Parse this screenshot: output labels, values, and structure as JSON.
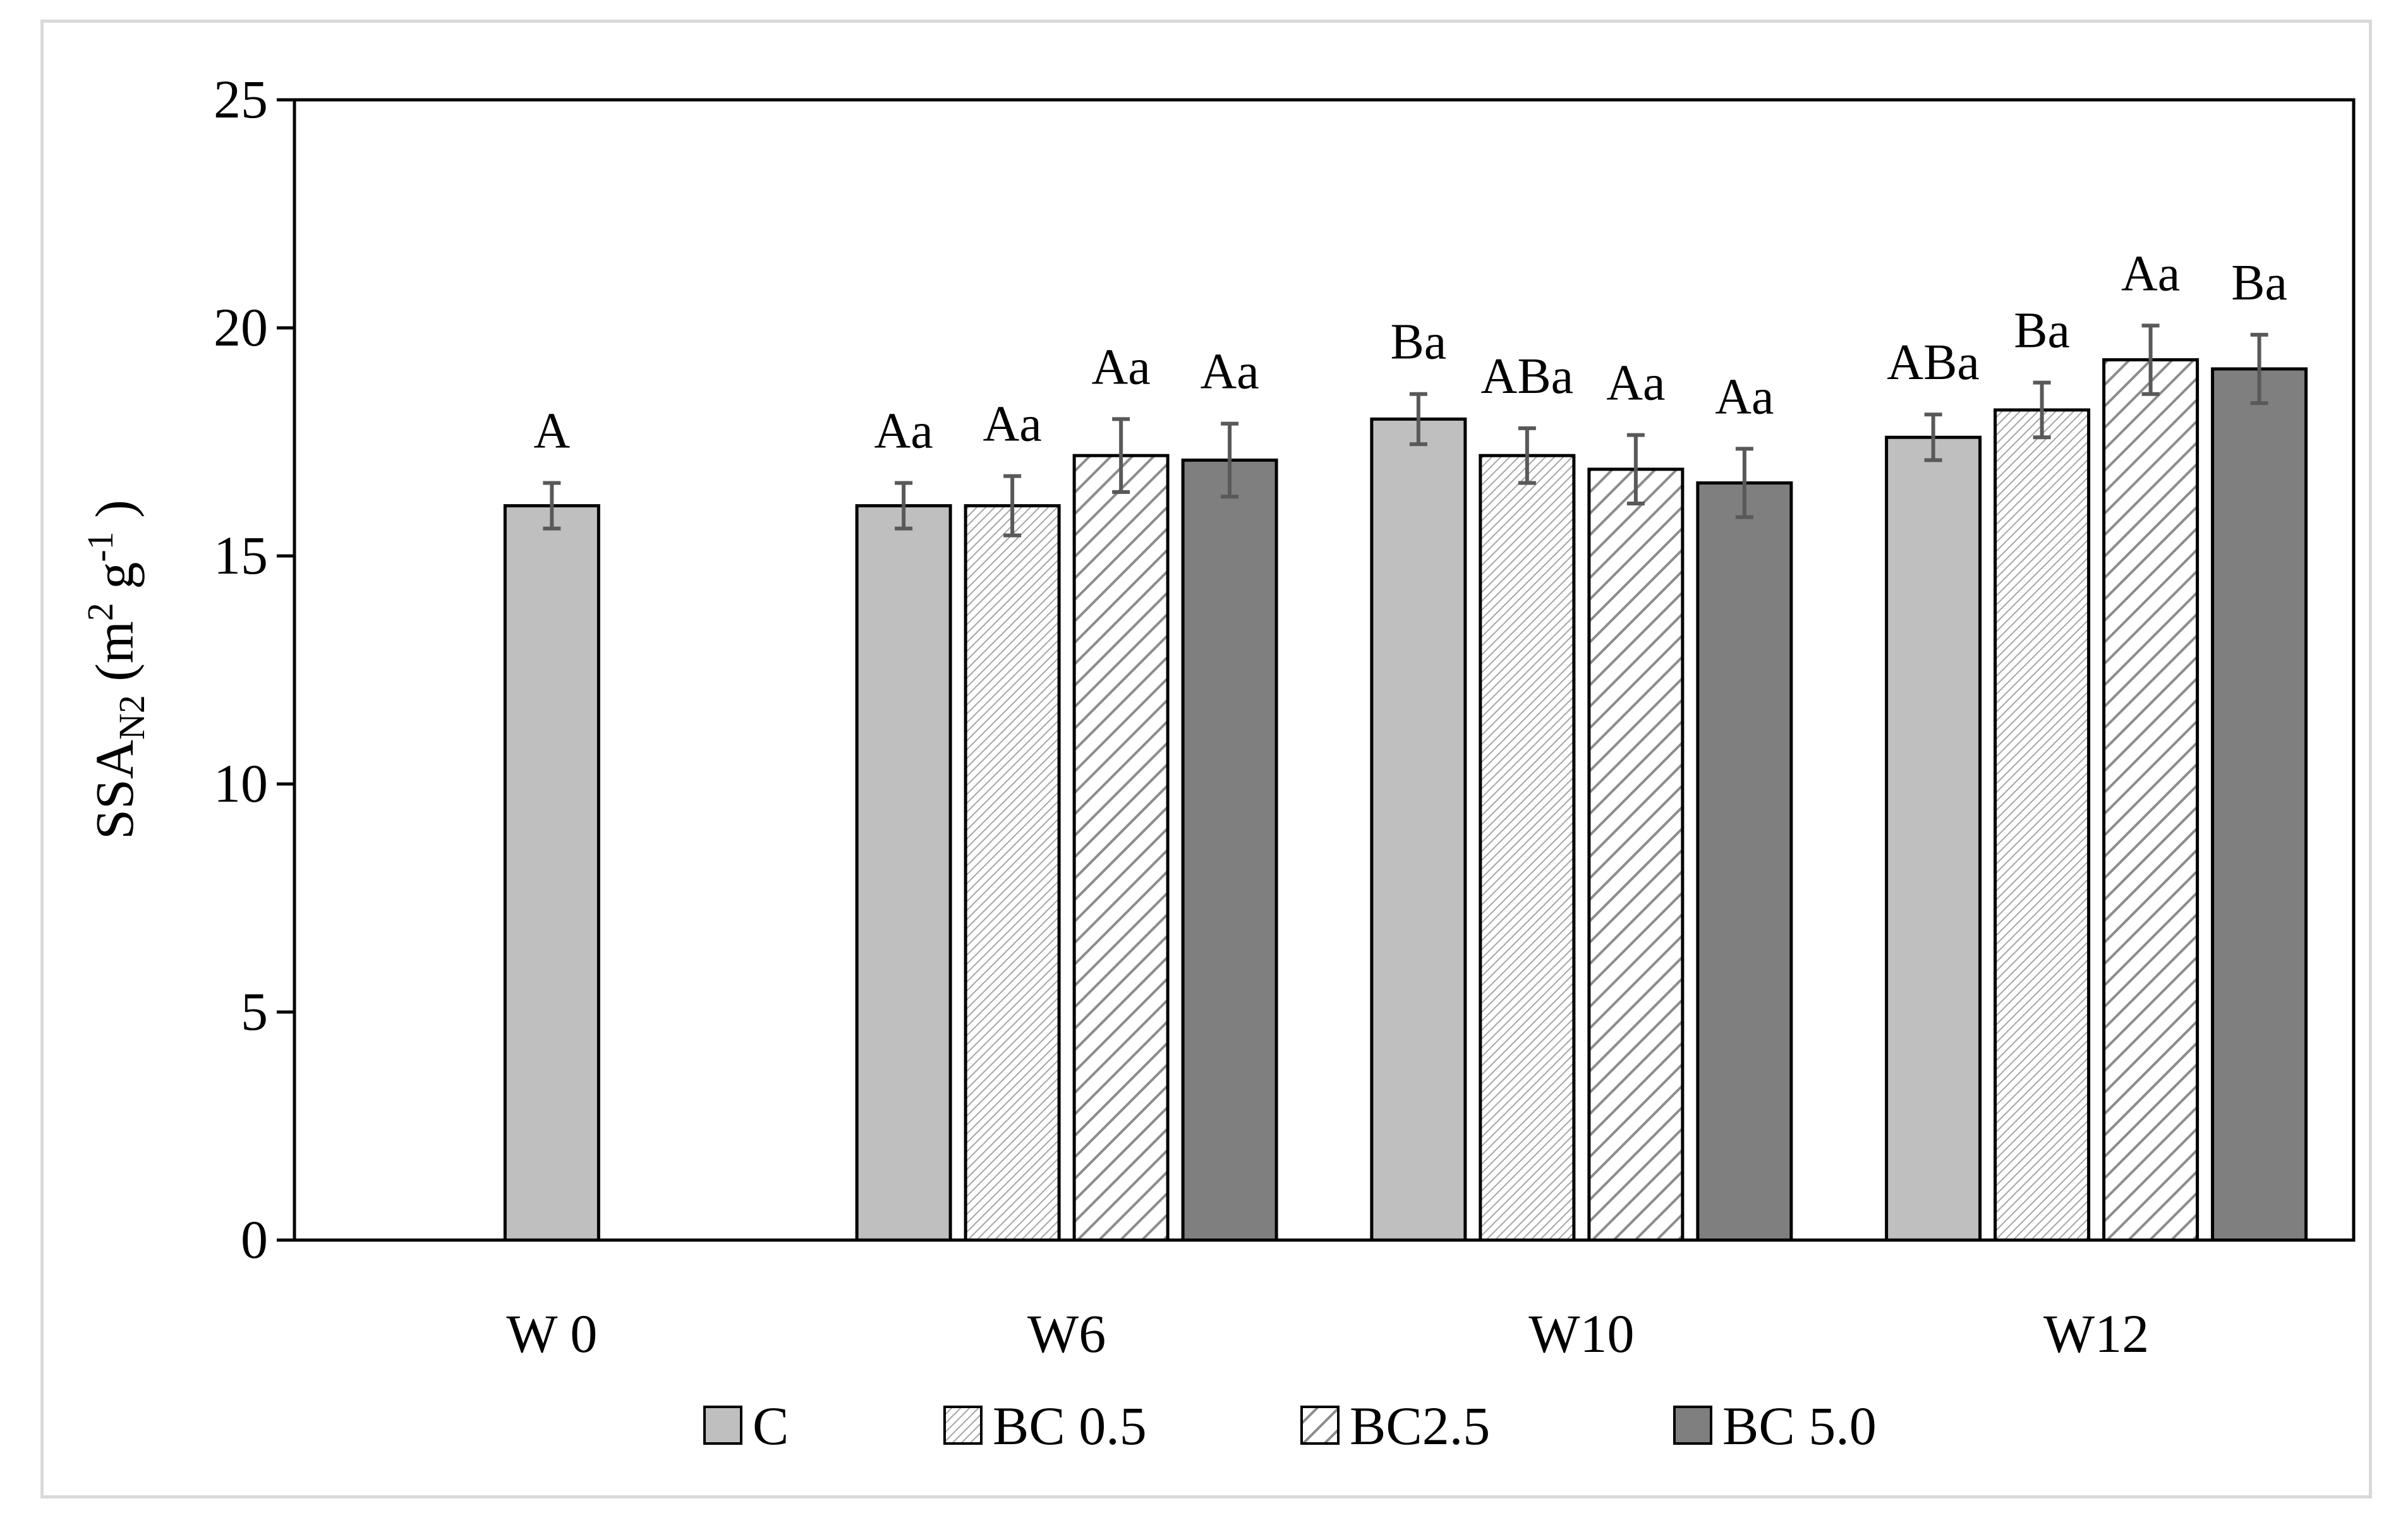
{
  "chart_data": {
    "type": "bar",
    "title": "",
    "xlabel": "",
    "ylabel": {
      "main": "SSA",
      "sub": "N2",
      "unit_open": " (m",
      "sup1": "2",
      "unit_mid": " g",
      "sup2": "-1",
      "unit_close": " )"
    },
    "ylim": [
      0,
      25
    ],
    "yticks": [
      0,
      5,
      10,
      15,
      20,
      25
    ],
    "grid": false,
    "legend_position": "bottom",
    "categories": [
      "W 0",
      "W6",
      "W10",
      "W12"
    ],
    "series": [
      {
        "name": "C",
        "key": "c",
        "values": [
          16.1,
          16.1,
          18.0,
          17.6
        ],
        "errors": [
          0.5,
          0.5,
          0.55,
          0.5
        ],
        "labels": [
          "A",
          "Aa",
          "Ba",
          "ABa"
        ]
      },
      {
        "name": "BC 0.5",
        "key": "bc05",
        "values": [
          null,
          16.1,
          17.2,
          18.2
        ],
        "errors": [
          null,
          0.65,
          0.6,
          0.6
        ],
        "labels": [
          null,
          "Aa",
          "ABa",
          "Ba"
        ]
      },
      {
        "name": "BC2.5",
        "key": "bc25",
        "values": [
          null,
          17.2,
          16.9,
          19.3
        ],
        "errors": [
          null,
          0.8,
          0.75,
          0.75
        ],
        "labels": [
          null,
          "Aa",
          "Aa",
          "Aa"
        ]
      },
      {
        "name": "BC 5.0",
        "key": "bc50",
        "values": [
          null,
          17.1,
          16.6,
          19.1
        ],
        "errors": [
          null,
          0.8,
          0.75,
          0.75
        ],
        "labels": [
          null,
          "Aa",
          "Aa",
          "Ba"
        ]
      }
    ],
    "colors": {
      "c": "#bfbfbf",
      "bc05": "#ffffff",
      "bc25": "#ffffff",
      "bc50": "#7f7f7f",
      "hatch_fine": "#a6a6a6",
      "hatch_wide": "#8c8c8c",
      "error_bar": "#595959",
      "axis": "#000000"
    }
  }
}
